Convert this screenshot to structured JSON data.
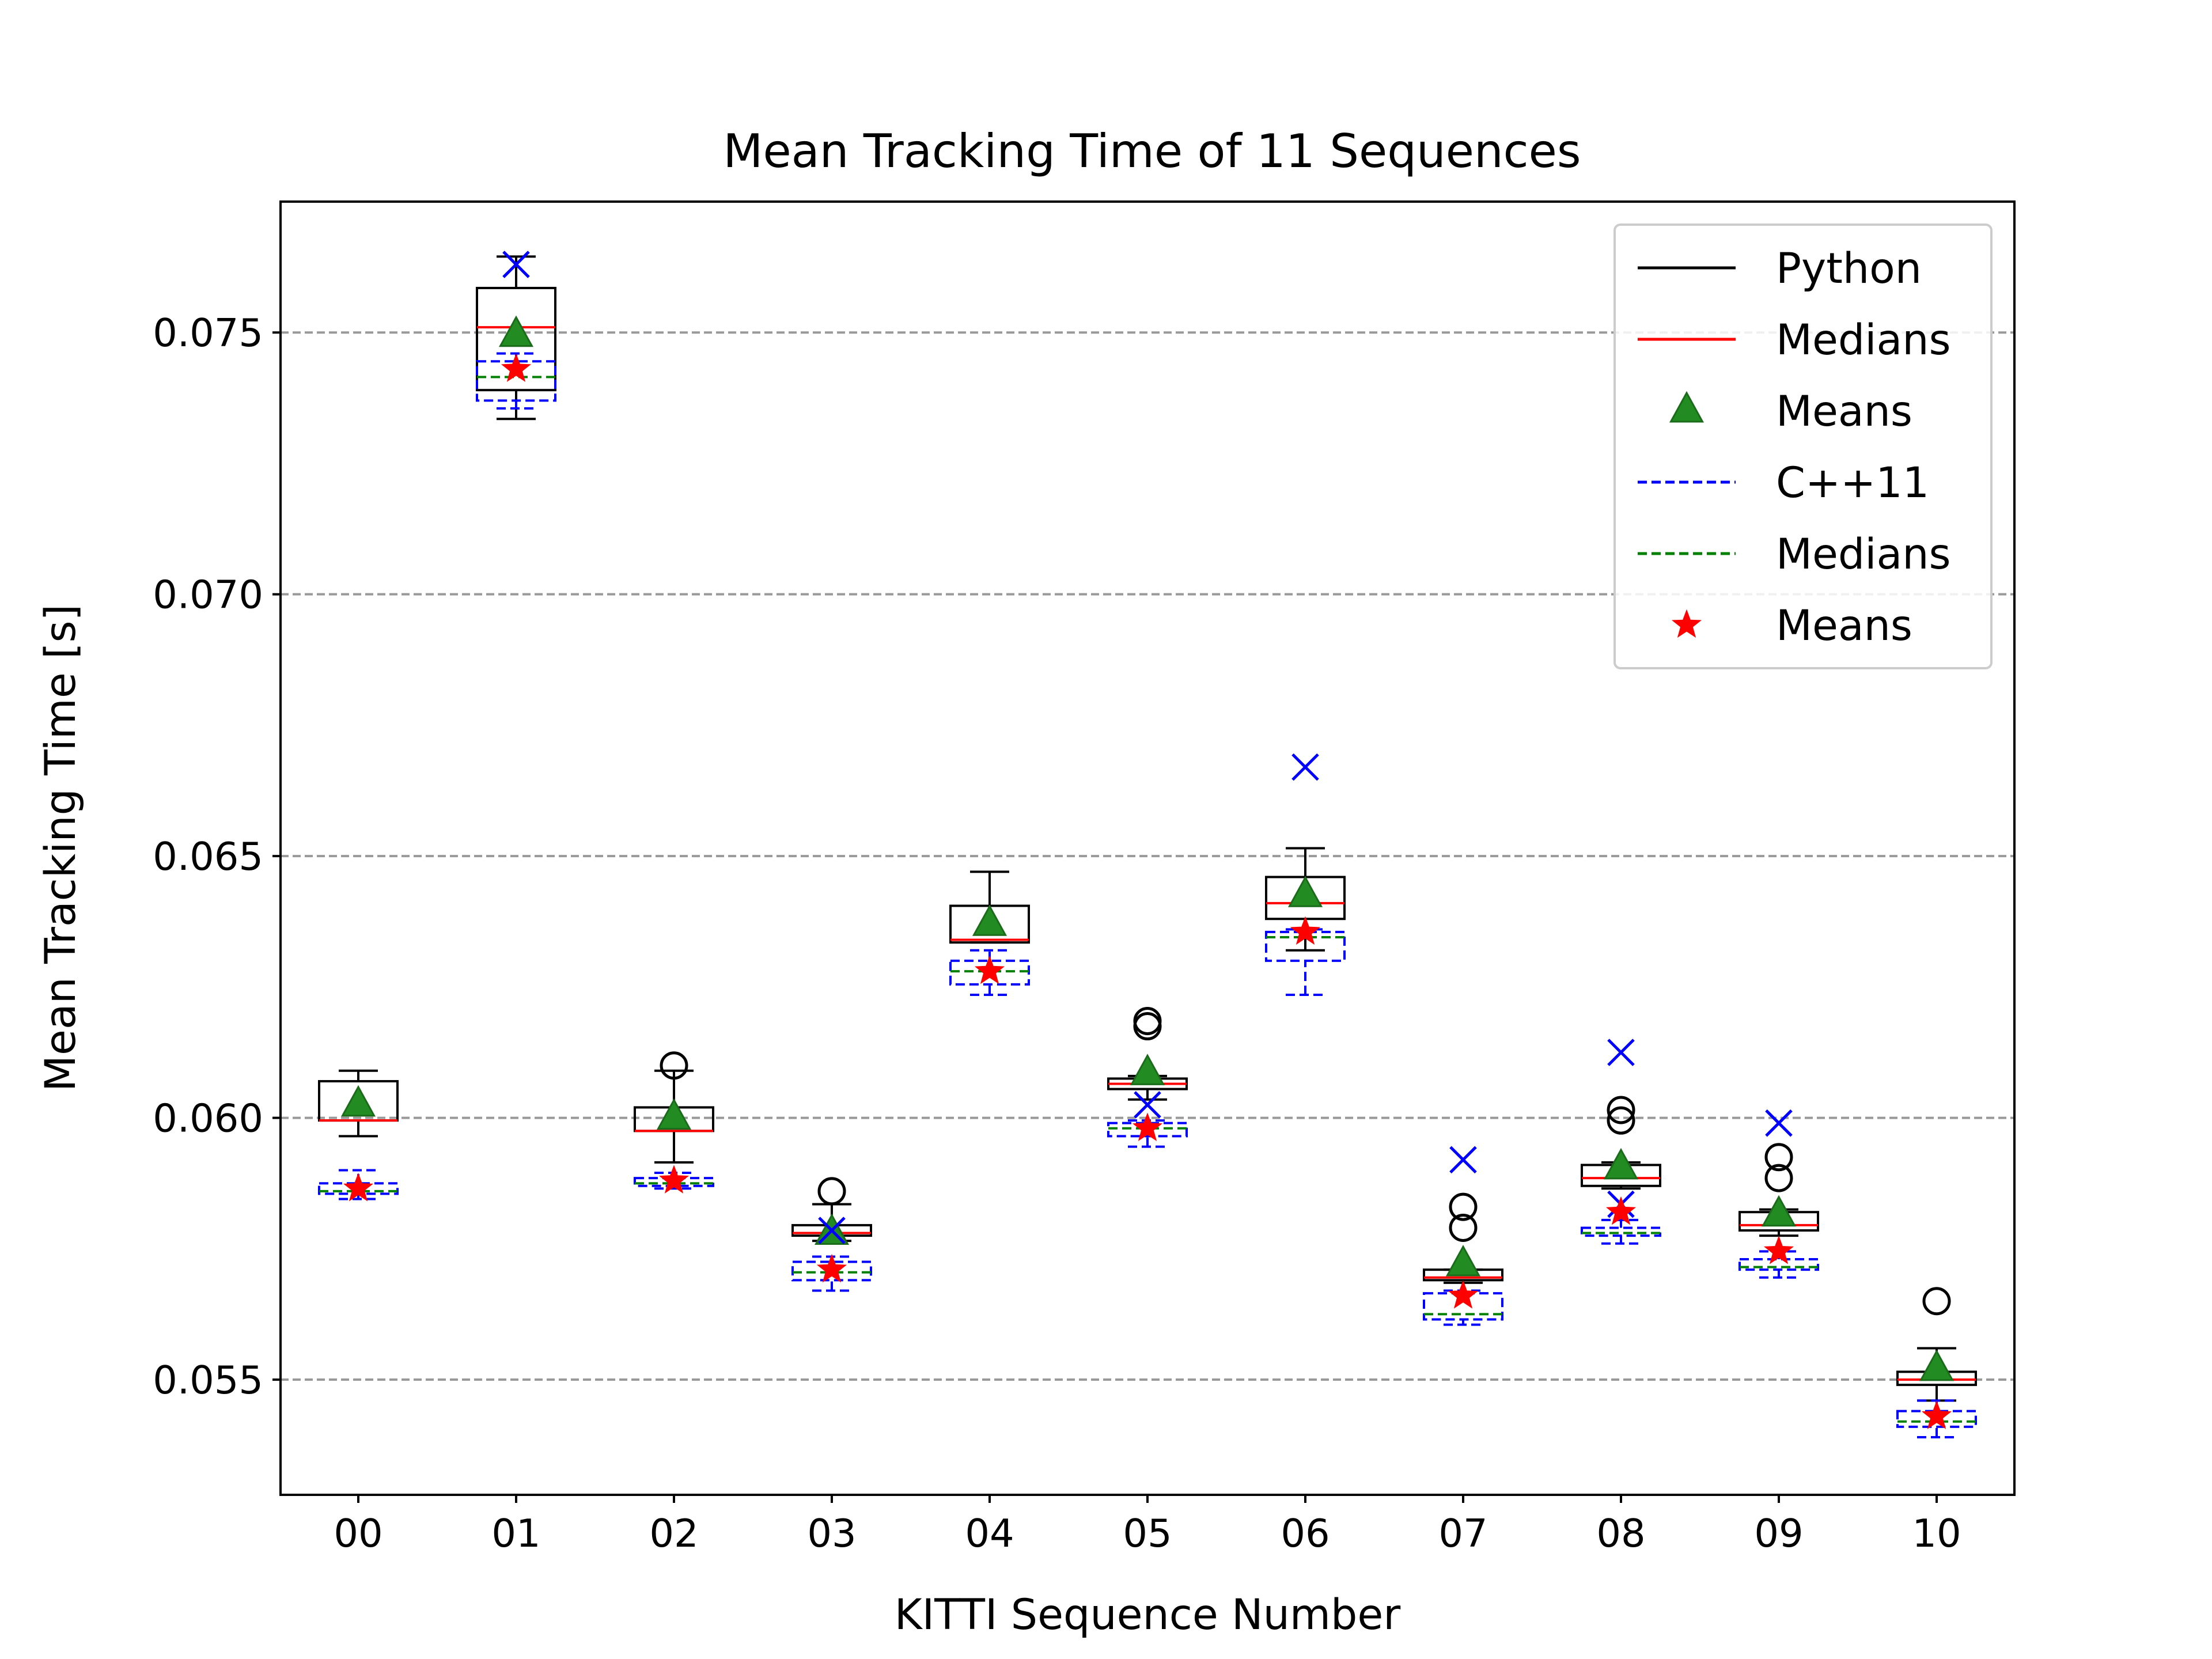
{
  "chart_data": {
    "type": "boxplot",
    "title": "Mean Tracking Time of 11 Sequences",
    "xlabel": "KITTI Sequence Number",
    "ylabel": "Mean Tracking Time [s]",
    "ylim": [
      0.0528,
      0.0775
    ],
    "yticks": [
      0.055,
      0.06,
      0.065,
      0.07,
      0.075
    ],
    "ytick_labels": [
      "0.055",
      "0.060",
      "0.065",
      "0.070",
      "0.075"
    ],
    "grid": "y dashed",
    "legend_position": "top-right",
    "categories": [
      "00",
      "01",
      "02",
      "03",
      "04",
      "05",
      "06",
      "07",
      "08",
      "09",
      "10"
    ],
    "legend": [
      {
        "label": "Python",
        "style": "solid-line",
        "color": "#000000"
      },
      {
        "label": "Medians",
        "style": "solid-line",
        "color": "#ff0000"
      },
      {
        "label": "Means",
        "style": "triangle",
        "color": "#228B22"
      },
      {
        "label": "C++11",
        "style": "dashed-line",
        "color": "#0000ff"
      },
      {
        "label": "Medians",
        "style": "dashed-line",
        "color": "#008000"
      },
      {
        "label": "Means",
        "style": "star",
        "color": "#ff0000"
      }
    ],
    "series": [
      {
        "name": "Python",
        "color": "#000000",
        "median_color": "#ff0000",
        "mean_color": "#228B22",
        "mean_marker": "triangle",
        "flier_marker": "circle",
        "boxes": [
          {
            "whislo": 0.05965,
            "q1": 0.05995,
            "med": 0.05995,
            "q3": 0.0607,
            "whishi": 0.0609,
            "mean": 0.06025,
            "fliers": []
          },
          {
            "whislo": 0.07335,
            "q1": 0.0739,
            "med": 0.0751,
            "q3": 0.07585,
            "whishi": 0.07645,
            "mean": 0.07495,
            "fliers": []
          },
          {
            "whislo": 0.05915,
            "q1": 0.05975,
            "med": 0.05975,
            "q3": 0.0602,
            "whishi": 0.0609,
            "mean": 0.06,
            "fliers": [
              0.061
            ]
          },
          {
            "whislo": 0.05765,
            "q1": 0.05775,
            "med": 0.0578,
            "q3": 0.05795,
            "whishi": 0.05835,
            "mean": 0.0578,
            "fliers": [
              0.0586
            ]
          },
          {
            "whislo": 0.06335,
            "q1": 0.06335,
            "med": 0.0634,
            "q3": 0.06405,
            "whishi": 0.0647,
            "mean": 0.0637,
            "fliers": []
          },
          {
            "whislo": 0.06035,
            "q1": 0.06055,
            "med": 0.06065,
            "q3": 0.06075,
            "whishi": 0.0608,
            "mean": 0.06085,
            "fliers": [
              0.06175,
              0.06185
            ]
          },
          {
            "whislo": 0.0632,
            "q1": 0.0638,
            "med": 0.0641,
            "q3": 0.0646,
            "whishi": 0.06515,
            "mean": 0.06425,
            "fliers": []
          },
          {
            "whislo": 0.05685,
            "q1": 0.0569,
            "med": 0.05695,
            "q3": 0.0571,
            "whishi": 0.0571,
            "mean": 0.0572,
            "fliers": [
              0.0579,
              0.0583
            ]
          },
          {
            "whislo": 0.05865,
            "q1": 0.0587,
            "med": 0.05885,
            "q3": 0.0591,
            "whishi": 0.05915,
            "mean": 0.05905,
            "fliers": [
              0.05995,
              0.06015
            ]
          },
          {
            "whislo": 0.05775,
            "q1": 0.05785,
            "med": 0.05795,
            "q3": 0.0582,
            "whishi": 0.05825,
            "mean": 0.05815,
            "fliers": [
              0.05885,
              0.05925
            ]
          },
          {
            "whislo": 0.0546,
            "q1": 0.0549,
            "med": 0.055,
            "q3": 0.05515,
            "whishi": 0.0556,
            "mean": 0.0552,
            "fliers": [
              0.0565
            ]
          }
        ]
      },
      {
        "name": "C++11",
        "color": "#0000ff",
        "median_color": "#008000",
        "mean_color": "#ff0000",
        "mean_marker": "star",
        "flier_marker": "x",
        "boxes": [
          {
            "whislo": 0.05845,
            "q1": 0.05855,
            "med": 0.0586,
            "q3": 0.05875,
            "whishi": 0.059,
            "mean": 0.05865,
            "fliers": []
          },
          {
            "whislo": 0.07355,
            "q1": 0.0737,
            "med": 0.07415,
            "q3": 0.07445,
            "whishi": 0.0746,
            "mean": 0.0743,
            "fliers": [
              0.0763
            ]
          },
          {
            "whislo": 0.05865,
            "q1": 0.0587,
            "med": 0.05875,
            "q3": 0.05885,
            "whishi": 0.05895,
            "mean": 0.0588,
            "fliers": []
          },
          {
            "whislo": 0.0567,
            "q1": 0.0569,
            "med": 0.05705,
            "q3": 0.05725,
            "whishi": 0.05735,
            "mean": 0.0571,
            "fliers": [
              0.05785
            ]
          },
          {
            "whislo": 0.06235,
            "q1": 0.06255,
            "med": 0.0628,
            "q3": 0.063,
            "whishi": 0.0632,
            "mean": 0.0628,
            "fliers": []
          },
          {
            "whislo": 0.05945,
            "q1": 0.05965,
            "med": 0.0598,
            "q3": 0.0599,
            "whishi": 0.05995,
            "mean": 0.0598,
            "fliers": [
              0.06025
            ]
          },
          {
            "whislo": 0.06235,
            "q1": 0.063,
            "med": 0.06345,
            "q3": 0.06355,
            "whishi": 0.0636,
            "mean": 0.06355,
            "fliers": [
              0.0667
            ]
          },
          {
            "whislo": 0.05605,
            "q1": 0.05615,
            "med": 0.05625,
            "q3": 0.05665,
            "whishi": 0.0567,
            "mean": 0.0566,
            "fliers": [
              0.0592
            ]
          },
          {
            "whislo": 0.0576,
            "q1": 0.05775,
            "med": 0.0578,
            "q3": 0.0579,
            "whishi": 0.05805,
            "mean": 0.0582,
            "fliers": [
              0.06125,
              0.05835
            ]
          },
          {
            "whislo": 0.05695,
            "q1": 0.0571,
            "med": 0.05715,
            "q3": 0.0573,
            "whishi": 0.05745,
            "mean": 0.05745,
            "fliers": [
              0.0599
            ]
          },
          {
            "whislo": 0.0539,
            "q1": 0.0541,
            "med": 0.0542,
            "q3": 0.0544,
            "whishi": 0.0546,
            "mean": 0.0543,
            "fliers": []
          }
        ]
      }
    ]
  }
}
